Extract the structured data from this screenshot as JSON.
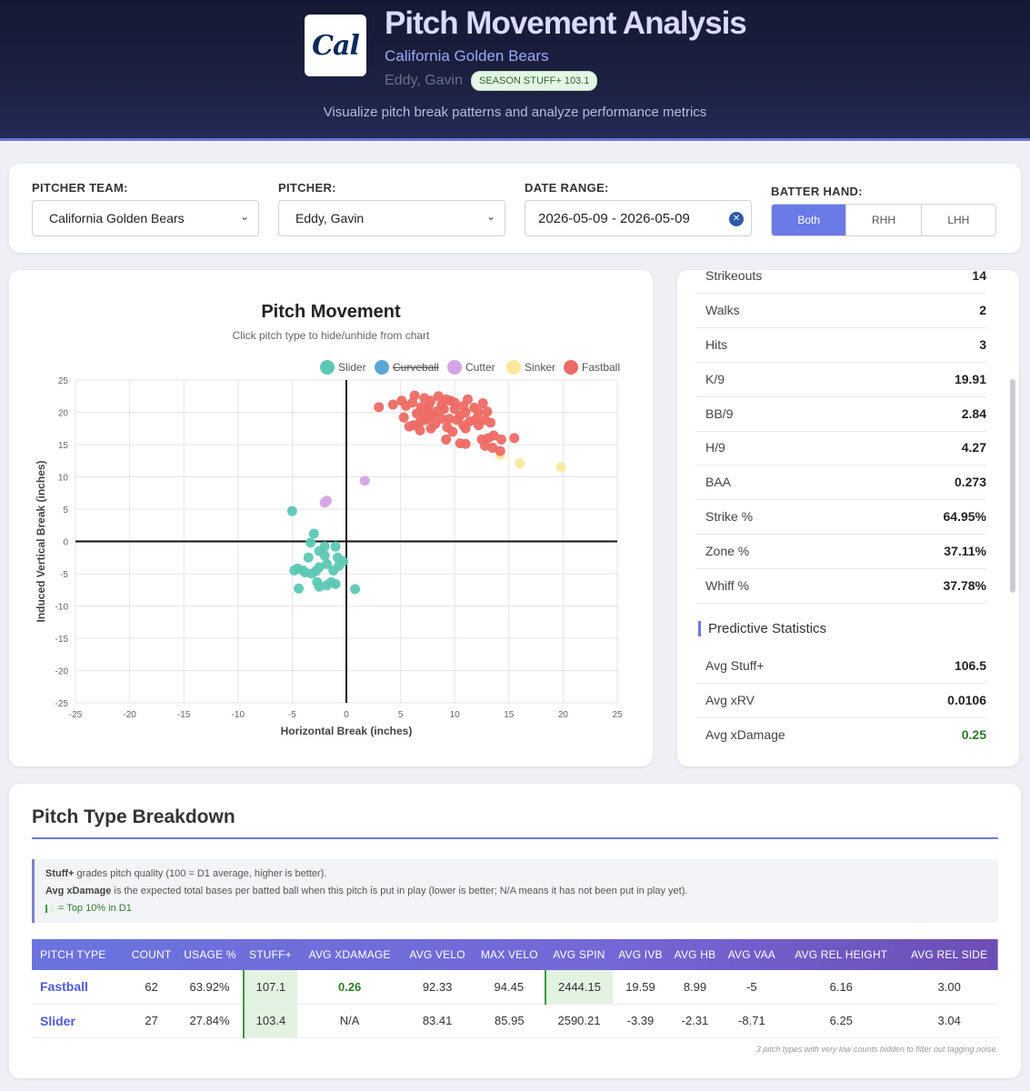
{
  "header": {
    "logo_text": "Cal",
    "title": "Pitch Movement Analysis",
    "team": "California Golden Bears",
    "pitcher": "Eddy, Gavin",
    "badge": "SEASON STUFF+ 103.1",
    "subtitle": "Visualize pitch break patterns and analyze performance metrics"
  },
  "filters": {
    "team_label": "PITCHER TEAM:",
    "team_value": "California Golden Bears",
    "pitcher_label": "PITCHER:",
    "pitcher_value": "Eddy, Gavin",
    "date_label": "DATE RANGE:",
    "date_value": "2026-05-09 - 2026-05-09",
    "hand_label": "BATTER HAND:",
    "hand_options": [
      "Both",
      "RHH",
      "LHH"
    ],
    "hand_selected": "Both"
  },
  "chart_data": {
    "type": "scatter",
    "title": "Pitch Movement",
    "subtitle": "Click pitch type to hide/unhide from chart",
    "xlabel": "Horizontal Break (inches)",
    "ylabel": "Induced Vertical Break (inches)",
    "xlim": [
      -25,
      25
    ],
    "ylim": [
      -25,
      25
    ],
    "xticks": [
      -25,
      -20,
      -15,
      -10,
      -5,
      0,
      5,
      10,
      15,
      20,
      25
    ],
    "yticks": [
      25,
      20,
      15,
      10,
      5,
      0,
      -5,
      -10,
      -15,
      -20,
      -25
    ],
    "grid": true,
    "legend_position": "top-right",
    "series": [
      {
        "name": "Slider",
        "color": "#5cc8b4",
        "hidden": false,
        "points": [
          [
            -5,
            4.7
          ],
          [
            -3,
            1.2
          ],
          [
            -3.3,
            -0.2
          ],
          [
            -2,
            -0.8
          ],
          [
            -1,
            -0.8
          ],
          [
            -4.5,
            -4.2
          ],
          [
            -4.8,
            -4.5
          ],
          [
            -4,
            -4.5
          ],
          [
            -3.8,
            -4.8
          ],
          [
            -3.2,
            -5
          ],
          [
            -2.8,
            -4.6
          ],
          [
            -2.5,
            -4
          ],
          [
            -1.8,
            -3.5
          ],
          [
            -2,
            -2.2
          ],
          [
            -2.5,
            -1.5
          ],
          [
            -0.8,
            -2.5
          ],
          [
            -0.3,
            -3.1
          ],
          [
            -0.7,
            -3.8
          ],
          [
            -2.7,
            -6.3
          ],
          [
            -1.4,
            -6.3
          ],
          [
            -1,
            -6.6
          ],
          [
            -1.8,
            -6.8
          ],
          [
            -4.4,
            -7.3
          ],
          [
            -2.5,
            -7
          ],
          [
            0.8,
            -7.4
          ],
          [
            -3.5,
            -2.5
          ],
          [
            -1.2,
            -4.5
          ]
        ]
      },
      {
        "name": "Curveball",
        "color": "#5ba7d6",
        "hidden": true,
        "points": []
      },
      {
        "name": "Cutter",
        "color": "#d6a4e6",
        "hidden": false,
        "points": [
          [
            -2,
            6
          ],
          [
            -1.8,
            6.3
          ],
          [
            1.7,
            9.4
          ]
        ]
      },
      {
        "name": "Sinker",
        "color": "#fbe89a",
        "hidden": false,
        "points": [
          [
            14.2,
            13.4
          ],
          [
            16,
            12.1
          ],
          [
            19.8,
            11.5
          ]
        ]
      },
      {
        "name": "Fastball",
        "color": "#ee6a64",
        "hidden": false,
        "points": [
          [
            3,
            20.8
          ],
          [
            4.3,
            21.2
          ],
          [
            5.1,
            21.8
          ],
          [
            6.3,
            22.6
          ],
          [
            7.2,
            22.2
          ],
          [
            7.8,
            21.8
          ],
          [
            8.5,
            22.5
          ],
          [
            9.2,
            22
          ],
          [
            10,
            21.5
          ],
          [
            11.2,
            22
          ],
          [
            11.8,
            20.7
          ],
          [
            12.6,
            21.4
          ],
          [
            13,
            20.1
          ],
          [
            12.8,
            18.8
          ],
          [
            12.2,
            18
          ],
          [
            10.8,
            18
          ],
          [
            7.5,
            20.2
          ],
          [
            7,
            20
          ],
          [
            6.5,
            19.8
          ],
          [
            6.8,
            18.5
          ],
          [
            8,
            19.5
          ],
          [
            8.8,
            19
          ],
          [
            9.5,
            19
          ],
          [
            10,
            20.5
          ],
          [
            10.5,
            19.5
          ],
          [
            11,
            20
          ],
          [
            12,
            19
          ],
          [
            13.3,
            18.4
          ],
          [
            6.2,
            18
          ],
          [
            5.8,
            17.8
          ],
          [
            6.8,
            17.2
          ],
          [
            7.8,
            17.5
          ],
          [
            9.3,
            17.7
          ],
          [
            9.8,
            17
          ],
          [
            11,
            17.5
          ],
          [
            13.1,
            16
          ],
          [
            13.6,
            16.4
          ],
          [
            14.3,
            15.8
          ],
          [
            15.5,
            16
          ],
          [
            14.2,
            14
          ],
          [
            9.2,
            15.8
          ],
          [
            10.5,
            15.2
          ],
          [
            11,
            15.1
          ],
          [
            12.8,
            14.8
          ],
          [
            13.5,
            14.5
          ],
          [
            12.5,
            15.8
          ],
          [
            7.5,
            19
          ],
          [
            8.2,
            18.2
          ],
          [
            9,
            20.5
          ],
          [
            10.2,
            18.8
          ],
          [
            11.4,
            18.6
          ],
          [
            5.5,
            21
          ],
          [
            6.1,
            21.5
          ],
          [
            7.6,
            21
          ],
          [
            8.8,
            21.2
          ],
          [
            10.8,
            21
          ],
          [
            9.6,
            21.8
          ],
          [
            8.4,
            20.2
          ],
          [
            6.9,
            20.8
          ],
          [
            12.2,
            20
          ],
          [
            5.3,
            19.2
          ],
          [
            7.2,
            18.8
          ]
        ]
      }
    ]
  },
  "stats": {
    "rows": [
      {
        "label": "Strikeouts",
        "value": "14"
      },
      {
        "label": "Walks",
        "value": "2"
      },
      {
        "label": "Hits",
        "value": "3"
      },
      {
        "label": "K/9",
        "value": "19.91"
      },
      {
        "label": "BB/9",
        "value": "2.84"
      },
      {
        "label": "H/9",
        "value": "4.27"
      },
      {
        "label": "BAA",
        "value": "0.273"
      },
      {
        "label": "Strike %",
        "value": "64.95%"
      },
      {
        "label": "Zone %",
        "value": "37.11%"
      },
      {
        "label": "Whiff %",
        "value": "37.78%"
      }
    ],
    "predictive_heading": "Predictive Statistics",
    "predictive": [
      {
        "label": "Avg Stuff+",
        "value": "106.5"
      },
      {
        "label": "Avg xRV",
        "value": "0.0106"
      },
      {
        "label": "Avg xDamage",
        "value": "0.25"
      }
    ]
  },
  "breakdown": {
    "title": "Pitch Type Breakdown",
    "info_stuff_term": "Stuff+",
    "info_stuff_text": " grades pitch quality (100 = D1 average, higher is better).",
    "info_xdmg_term": "Avg xDamage",
    "info_xdmg_text": " is the expected total bases per batted ball when this pitch is put in play (lower is better; N/A means it has not been put in play yet).",
    "info_top_text": "= Top 10% in D1",
    "columns": [
      "PITCH TYPE",
      "COUNT",
      "USAGE %",
      "STUFF+",
      "AVG XDAMAGE",
      "AVG VELO",
      "MAX VELO",
      "AVG SPIN",
      "AVG IVB",
      "AVG HB",
      "AVG VAA",
      "AVG REL HEIGHT",
      "AVG REL SIDE"
    ],
    "rows": [
      [
        "Fastball",
        "62",
        "63.92%",
        "107.1",
        "0.26",
        "92.33",
        "94.45",
        "2444.15",
        "19.59",
        "8.99",
        "-5",
        "6.16",
        "3.00"
      ],
      [
        "Slider",
        "27",
        "27.84%",
        "103.4",
        "N/A",
        "83.41",
        "85.95",
        "2590.21",
        "-3.39",
        "-2.31",
        "-8.71",
        "6.25",
        "3.04"
      ]
    ],
    "footnote": "3 pitch types with very low counts hidden to filter out tagging noise."
  }
}
